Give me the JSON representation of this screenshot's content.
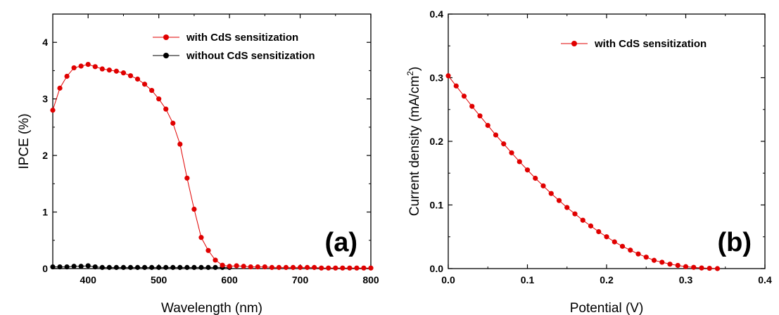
{
  "chart_data": [
    {
      "type": "line",
      "panel_label": "(a)",
      "xlabel": "Wavelength (nm)",
      "ylabel": "IPCE (%)",
      "xlim": [
        350,
        800
      ],
      "ylim": [
        0,
        4.5
      ],
      "xticks": [
        400,
        500,
        600,
        700,
        800
      ],
      "yticks": [
        0,
        1,
        2,
        3,
        4
      ],
      "grid": false,
      "legend_position": "top-right",
      "series": [
        {
          "name": "with CdS sensitization",
          "color": "#e00000",
          "marker": "circle",
          "x": [
            350,
            360,
            370,
            380,
            390,
            400,
            410,
            420,
            430,
            440,
            450,
            460,
            470,
            480,
            490,
            500,
            510,
            520,
            530,
            540,
            550,
            560,
            570,
            580,
            590,
            600,
            610,
            620,
            630,
            640,
            650,
            660,
            670,
            680,
            690,
            700,
            710,
            720,
            730,
            740,
            750,
            760,
            770,
            780,
            790,
            800
          ],
          "y": [
            2.8,
            3.19,
            3.4,
            3.55,
            3.58,
            3.61,
            3.57,
            3.53,
            3.51,
            3.49,
            3.46,
            3.41,
            3.35,
            3.26,
            3.15,
            3.0,
            2.82,
            2.57,
            2.2,
            1.6,
            1.05,
            0.55,
            0.32,
            0.15,
            0.06,
            0.04,
            0.05,
            0.04,
            0.03,
            0.03,
            0.03,
            0.02,
            0.02,
            0.02,
            0.02,
            0.02,
            0.02,
            0.02,
            0.01,
            0.01,
            0.01,
            0.01,
            0.01,
            0.01,
            0.01,
            0.01
          ]
        },
        {
          "name": "without CdS sensitization",
          "color": "#000000",
          "marker": "circle",
          "x": [
            350,
            360,
            370,
            380,
            390,
            400,
            410,
            420,
            430,
            440,
            450,
            460,
            470,
            480,
            490,
            500,
            510,
            520,
            530,
            540,
            550,
            560,
            570,
            580,
            590,
            600
          ],
          "y": [
            0.03,
            0.03,
            0.03,
            0.04,
            0.04,
            0.05,
            0.03,
            0.02,
            0.02,
            0.02,
            0.02,
            0.02,
            0.02,
            0.02,
            0.02,
            0.02,
            0.02,
            0.02,
            0.02,
            0.02,
            0.02,
            0.02,
            0.02,
            0.02,
            0.02,
            0.02
          ]
        }
      ]
    },
    {
      "type": "line",
      "panel_label": "(b)",
      "xlabel": "Potential (V)",
      "ylabel": "Current density (mA/cm",
      "ylabel_superscript": "2",
      "ylabel_suffix": ")",
      "xlim": [
        0.0,
        0.4
      ],
      "ylim": [
        0.0,
        0.4
      ],
      "xticks": [
        "0.0",
        "0.1",
        "0.2",
        "0.3",
        "0.4"
      ],
      "yticks": [
        "0.0",
        "0.1",
        "0.2",
        "0.3",
        "0.4"
      ],
      "grid": false,
      "legend_position": "top-right",
      "series": [
        {
          "name": "with CdS sensitization",
          "color": "#e00000",
          "marker": "circle",
          "x": [
            0.0,
            0.01,
            0.02,
            0.03,
            0.04,
            0.05,
            0.06,
            0.07,
            0.08,
            0.09,
            0.1,
            0.11,
            0.12,
            0.13,
            0.14,
            0.15,
            0.16,
            0.17,
            0.18,
            0.19,
            0.2,
            0.21,
            0.22,
            0.23,
            0.24,
            0.25,
            0.26,
            0.27,
            0.28,
            0.29,
            0.3,
            0.31,
            0.32,
            0.33,
            0.34
          ],
          "y": [
            0.303,
            0.287,
            0.271,
            0.255,
            0.24,
            0.225,
            0.21,
            0.196,
            0.182,
            0.168,
            0.155,
            0.142,
            0.13,
            0.118,
            0.107,
            0.096,
            0.086,
            0.076,
            0.067,
            0.058,
            0.05,
            0.042,
            0.035,
            0.029,
            0.023,
            0.018,
            0.013,
            0.01,
            0.007,
            0.005,
            0.003,
            0.002,
            0.001,
            0.0005,
            0.0
          ]
        }
      ]
    }
  ]
}
